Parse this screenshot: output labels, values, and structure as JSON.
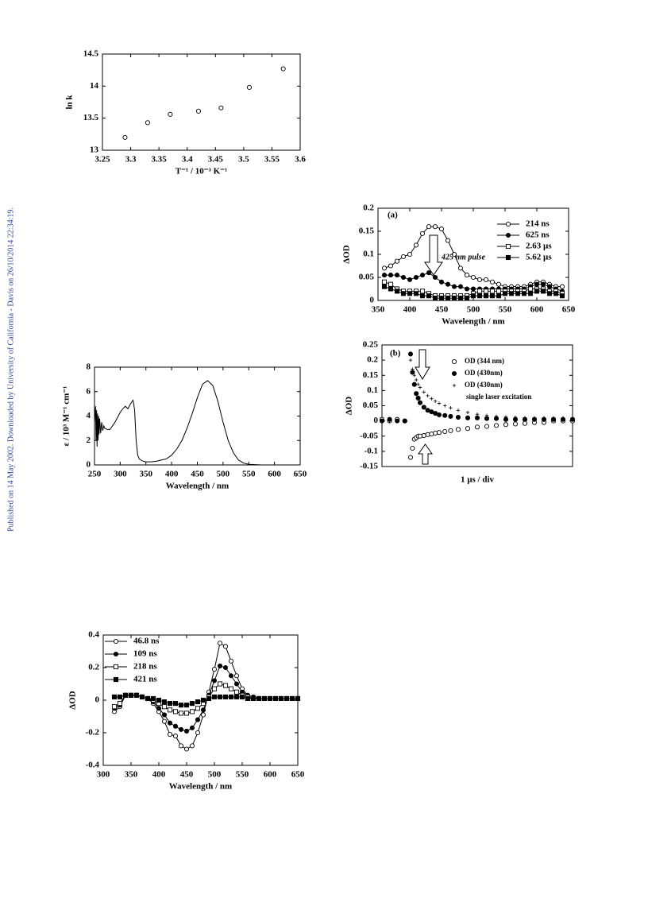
{
  "side_text": "Published on 14 May 2002. Downloaded by University of California - Davis on 26/10/2014 22:34:19.",
  "chart_data": [
    {
      "type": "scatter",
      "xlabel": "T⁻¹ / 10⁻³ K⁻¹",
      "ylabel": "ln k",
      "x": [
        3.29,
        3.33,
        3.37,
        3.42,
        3.46,
        3.51,
        3.57
      ],
      "values": [
        13.2,
        13.43,
        13.56,
        13.61,
        13.66,
        13.98,
        14.27
      ],
      "marker": "open-circle",
      "color": "#000000",
      "xlim": [
        3.25,
        3.6
      ],
      "xticks": [
        3.25,
        3.3,
        3.35,
        3.4,
        3.45,
        3.5,
        3.55,
        3.6
      ],
      "ylim": [
        13,
        14.5
      ],
      "yticks": [
        13,
        13.5,
        14,
        14.5
      ]
    },
    {
      "type": "line",
      "xlabel": "Wavelength / nm",
      "ylabel": "ε / 10³ M⁻¹ cm⁻¹",
      "x": [
        250,
        252,
        253,
        254,
        255,
        256,
        257,
        258,
        259,
        260,
        262,
        264,
        266,
        268,
        270,
        275,
        280,
        285,
        290,
        295,
        300,
        305,
        310,
        315,
        320,
        325,
        328,
        331,
        334,
        337,
        340,
        345,
        350,
        360,
        370,
        380,
        390,
        400,
        410,
        420,
        430,
        440,
        450,
        460,
        470,
        480,
        490,
        500,
        510,
        520,
        530,
        540,
        550,
        575,
        600,
        630
      ],
      "values": [
        3.5,
        4.8,
        2.0,
        4.5,
        1.5,
        4.2,
        2.0,
        4.0,
        2.5,
        3.8,
        2.6,
        3.5,
        2.8,
        3.2,
        3.0,
        2.9,
        2.9,
        3.2,
        3.5,
        3.9,
        4.3,
        4.6,
        4.8,
        4.6,
        5.0,
        5.3,
        4.5,
        2.0,
        0.8,
        0.5,
        0.4,
        0.3,
        0.25,
        0.25,
        0.3,
        0.4,
        0.5,
        0.8,
        1.3,
        2.0,
        3.0,
        4.2,
        5.5,
        6.6,
        6.9,
        6.5,
        5.2,
        3.5,
        2.0,
        1.0,
        0.4,
        0.15,
        0.05,
        0,
        0,
        0
      ],
      "color": "#000000",
      "xlim": [
        250,
        650
      ],
      "xticks": [
        250,
        300,
        350,
        400,
        450,
        500,
        550,
        600,
        650
      ],
      "ylim": [
        0,
        8
      ],
      "yticks": [
        0,
        2,
        4,
        6,
        8
      ]
    },
    {
      "type": "line",
      "xlabel": "Wavelength / nm",
      "ylabel": "ΔOD",
      "legend": "upper left",
      "x": [
        320,
        330,
        340,
        350,
        360,
        370,
        380,
        390,
        400,
        410,
        420,
        430,
        440,
        450,
        460,
        470,
        480,
        490,
        500,
        510,
        520,
        530,
        540,
        550,
        560,
        570,
        580,
        590,
        600,
        610,
        620,
        630,
        640,
        650
      ],
      "series": [
        {
          "name": "46.8 ns",
          "marker": "open-circle",
          "color": "#000000",
          "values": [
            -0.07,
            -0.04,
            0.03,
            0.03,
            0.03,
            0.02,
            0.01,
            -0.02,
            -0.07,
            -0.13,
            -0.21,
            -0.22,
            -0.28,
            -0.3,
            -0.28,
            -0.2,
            -0.09,
            0.05,
            0.19,
            0.35,
            0.33,
            0.24,
            0.15,
            0.07,
            0.03,
            0.02,
            0.01,
            0.01,
            0.01,
            0.01,
            0.01,
            0.01,
            0.01,
            0.01
          ]
        },
        {
          "name": "109 ns",
          "marker": "filled-circle",
          "color": "#000000",
          "values": [
            -0.05,
            -0.03,
            0.03,
            0.03,
            0.03,
            0.02,
            0.01,
            -0.01,
            -0.05,
            -0.09,
            -0.14,
            -0.16,
            -0.18,
            -0.19,
            -0.17,
            -0.12,
            -0.06,
            0.03,
            0.12,
            0.21,
            0.2,
            0.15,
            0.1,
            0.05,
            0.03,
            0.02,
            0.01,
            0.01,
            0.01,
            0.01,
            0.01,
            0.01,
            0.01,
            0.01
          ]
        },
        {
          "name": "218 ns",
          "marker": "open-square",
          "color": "#000000",
          "values": [
            -0.04,
            -0.02,
            0.03,
            0.03,
            0.03,
            0.02,
            0.01,
            0,
            -0.02,
            -0.04,
            -0.06,
            -0.07,
            -0.08,
            -0.08,
            -0.07,
            -0.05,
            -0.02,
            0.02,
            0.07,
            0.1,
            0.09,
            0.07,
            0.05,
            0.03,
            0.02,
            0.01,
            0.01,
            0.01,
            0.01,
            0.01,
            0.01,
            0.01,
            0.01,
            0.01
          ]
        },
        {
          "name": "421 ns",
          "marker": "filled-square",
          "color": "#000000",
          "values": [
            0.02,
            0.02,
            0.03,
            0.03,
            0.03,
            0.02,
            0.01,
            0.01,
            0,
            -0.01,
            -0.02,
            -0.02,
            -0.03,
            -0.03,
            -0.02,
            -0.01,
            0,
            0.01,
            0.02,
            0.02,
            0.02,
            0.02,
            0.02,
            0.02,
            0.01,
            0.01,
            0.01,
            0.01,
            0.01,
            0.01,
            0.01,
            0.01,
            0.01,
            0.01
          ]
        }
      ],
      "xlim": [
        300,
        650
      ],
      "xticks": [
        300,
        350,
        400,
        450,
        500,
        550,
        600,
        650
      ],
      "ylim": [
        -0.4,
        0.4
      ],
      "yticks": [
        -0.4,
        -0.2,
        0,
        0.2,
        0.4
      ]
    },
    {
      "type": "line",
      "xlabel": "Wavelength / nm",
      "ylabel": "ΔOD",
      "legend": "upper right",
      "panel_label": "(a)",
      "annotation": "425 nm pulse",
      "x": [
        360,
        370,
        380,
        390,
        400,
        410,
        420,
        430,
        440,
        450,
        460,
        470,
        480,
        490,
        500,
        510,
        520,
        530,
        540,
        550,
        560,
        570,
        580,
        590,
        600,
        610,
        620,
        630,
        640
      ],
      "series": [
        {
          "name": "214 ns",
          "marker": "open-circle",
          "color": "#000000",
          "values": [
            0.07,
            0.075,
            0.085,
            0.095,
            0.1,
            0.12,
            0.145,
            0.16,
            0.16,
            0.155,
            0.13,
            0.1,
            0.07,
            0.055,
            0.05,
            0.045,
            0.045,
            0.04,
            0.035,
            0.03,
            0.03,
            0.03,
            0.03,
            0.035,
            0.04,
            0.04,
            0.035,
            0.03,
            0.03
          ]
        },
        {
          "name": "625 ns",
          "marker": "filled-circle",
          "color": "#000000",
          "values": [
            0.055,
            0.055,
            0.055,
            0.05,
            0.045,
            0.05,
            0.055,
            0.06,
            0.05,
            0.04,
            0.035,
            0.03,
            0.03,
            0.025,
            0.025,
            0.025,
            0.025,
            0.025,
            0.025,
            0.025,
            0.025,
            0.025,
            0.025,
            0.03,
            0.035,
            0.035,
            0.03,
            0.025,
            0.02
          ]
        },
        {
          "name": "2.63 µs",
          "marker": "open-square",
          "color": "#000000",
          "values": [
            0.04,
            0.035,
            0.025,
            0.02,
            0.02,
            0.02,
            0.02,
            0.015,
            0.01,
            0.01,
            0.01,
            0.01,
            0.01,
            0.01,
            0.015,
            0.02,
            0.02,
            0.02,
            0.02,
            0.02,
            0.02,
            0.02,
            0.02,
            0.025,
            0.025,
            0.025,
            0.02,
            0.02,
            0.015
          ]
        },
        {
          "name": "5.62 µs",
          "marker": "filled-square",
          "color": "#000000",
          "values": [
            0.03,
            0.025,
            0.02,
            0.015,
            0.015,
            0.015,
            0.01,
            0.01,
            0.005,
            0.005,
            0.005,
            0.005,
            0.005,
            0.005,
            0.01,
            0.01,
            0.01,
            0.01,
            0.01,
            0.015,
            0.015,
            0.015,
            0.015,
            0.015,
            0.02,
            0.02,
            0.015,
            0.015,
            0.01
          ]
        }
      ],
      "xlim": [
        350,
        650
      ],
      "xticks": [
        350,
        400,
        450,
        500,
        550,
        600,
        650
      ],
      "ylim": [
        0,
        0.2
      ],
      "yticks": [
        0,
        0.05,
        0.1,
        0.15,
        0.2
      ]
    },
    {
      "type": "scatter",
      "xlabel": "1 µs / div",
      "ylabel": "ΔOD",
      "legend": "upper right",
      "panel_label": "(b)",
      "annotation": "single laser excitation",
      "x": [
        0,
        0.4,
        0.8,
        1.2,
        1.5,
        1.6,
        1.7,
        1.8,
        1.9,
        2.0,
        2.2,
        2.4,
        2.6,
        2.8,
        3.0,
        3.3,
        3.6,
        4.0,
        4.5,
        5.0,
        5.5,
        6.0,
        6.5,
        7.0,
        7.5,
        8.0,
        8.5,
        9.0,
        9.5,
        10
      ],
      "series": [
        {
          "name": "OD (344 nm)",
          "marker": "open-circle",
          "color": "#000000",
          "values": [
            0.005,
            0,
            0.005,
            0,
            -0.12,
            -0.09,
            -0.06,
            -0.055,
            -0.05,
            -0.05,
            -0.048,
            -0.045,
            -0.043,
            -0.04,
            -0.038,
            -0.035,
            -0.032,
            -0.028,
            -0.025,
            -0.02,
            -0.018,
            -0.015,
            -0.012,
            -0.01,
            -0.008,
            -0.005,
            -0.005,
            0,
            0,
            0
          ]
        },
        {
          "name": "OD (430nm)",
          "marker": "filled-circle",
          "color": "#000000",
          "values": [
            0,
            0.005,
            0,
            0,
            0.22,
            0.16,
            0.12,
            0.09,
            0.075,
            0.06,
            0.045,
            0.035,
            0.03,
            0.025,
            0.02,
            0.018,
            0.015,
            0.012,
            0.01,
            0.01,
            0.008,
            0.008,
            0.005,
            0.005,
            0.005,
            0.005,
            0.005,
            0.005,
            0.005,
            0.005
          ]
        },
        {
          "name": "OD (430nm)",
          "marker": "plus",
          "color": "#000000",
          "values": [
            0,
            0,
            0,
            0,
            0.2,
            0.17,
            0.15,
            0.135,
            0.12,
            0.11,
            0.095,
            0.083,
            0.073,
            0.065,
            0.058,
            0.05,
            0.043,
            0.035,
            0.028,
            0.022,
            0.018,
            0.015,
            0.013,
            0.012,
            0.011,
            0.01,
            0.01,
            0.01,
            0.01,
            0.01
          ]
        }
      ],
      "xlim": [
        0,
        10
      ],
      "ylim": [
        -0.15,
        0.25
      ],
      "yticks": [
        -0.15,
        -0.1,
        -0.05,
        0,
        0.05,
        0.1,
        0.15,
        0.2,
        0.25
      ]
    }
  ]
}
